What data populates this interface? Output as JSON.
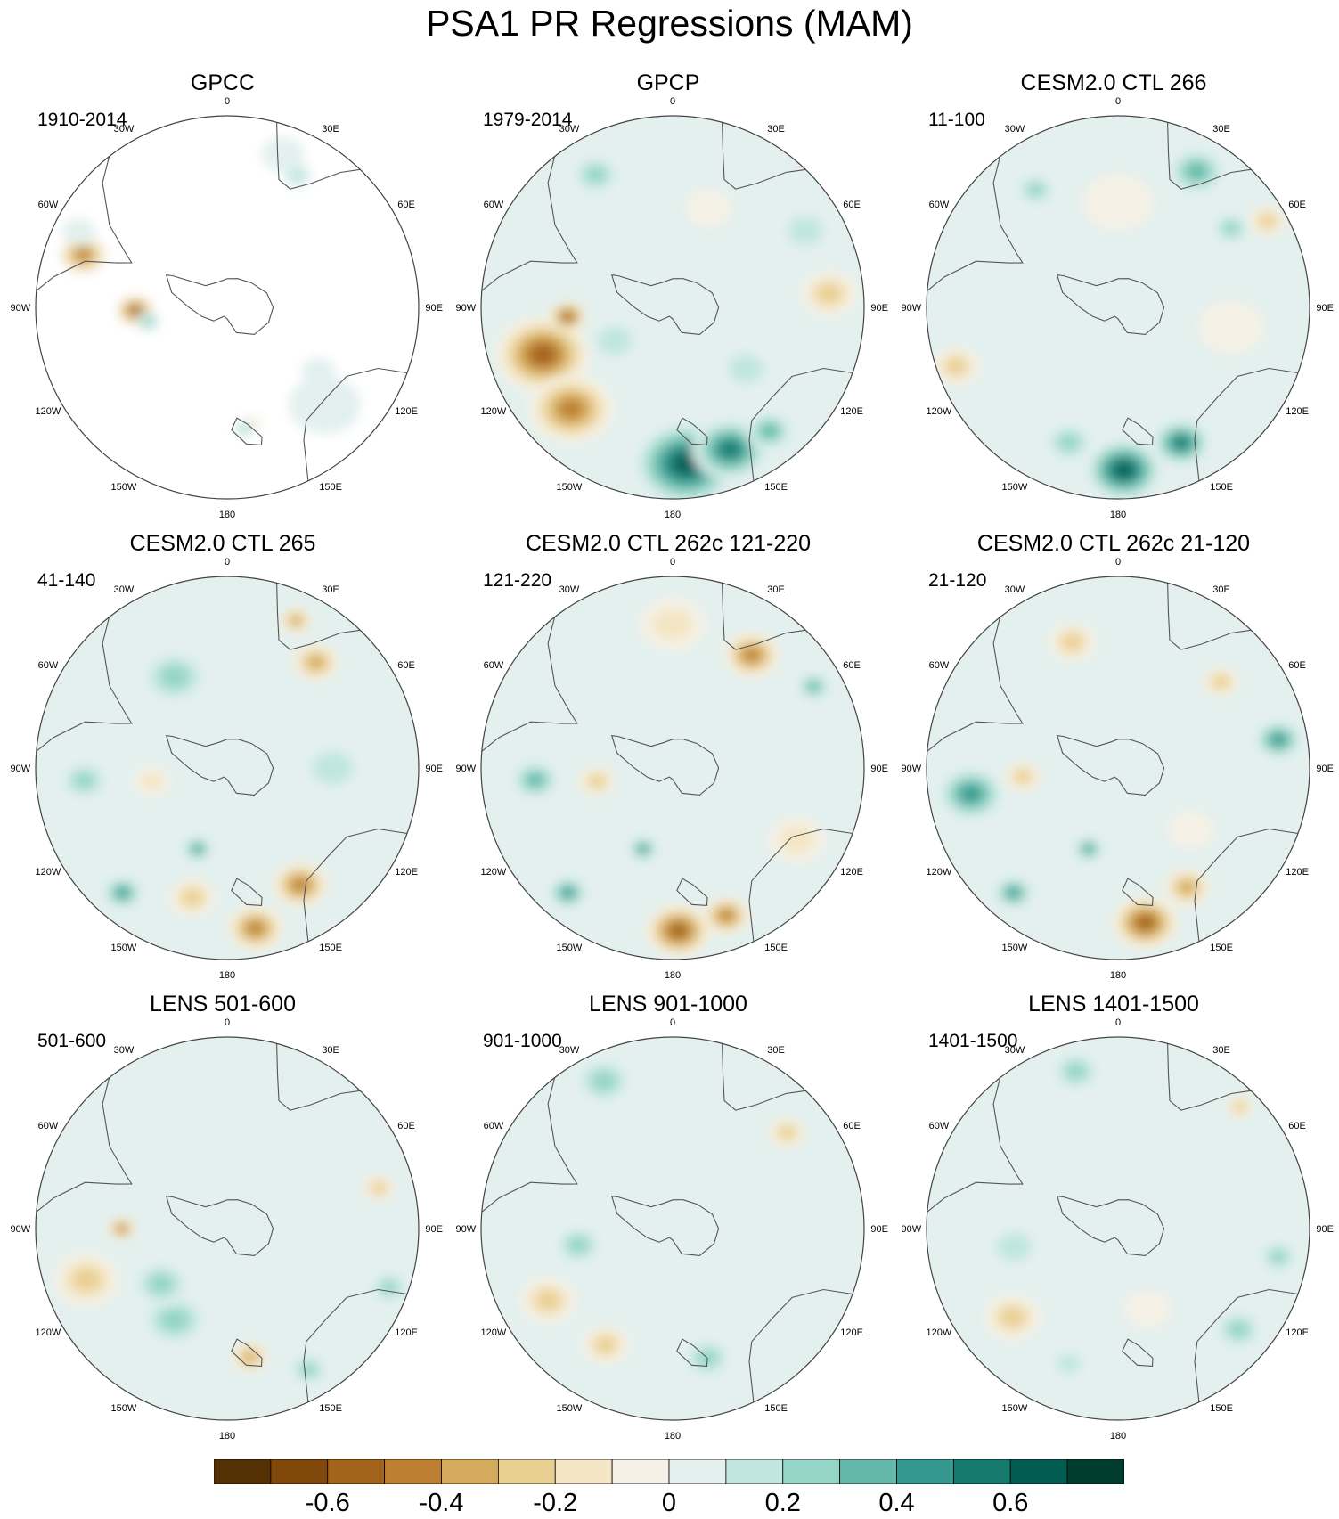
{
  "title": "PSA1 PR Regressions (MAM)",
  "lon_labels": [
    "0",
    "30E",
    "60E",
    "90E",
    "120E",
    "150E",
    "180",
    "150W",
    "120W",
    "90W",
    "60W",
    "30W"
  ],
  "panels": [
    {
      "title": "GPCC",
      "period": "1910-2014",
      "coverage": "land-only",
      "features": [
        {
          "lon": -70,
          "r": 0.8,
          "size": 0.1,
          "value": -0.5
        },
        {
          "lon": -63,
          "r": 0.87,
          "size": 0.07,
          "value": 0.15
        },
        {
          "lon": -92,
          "r": 0.48,
          "size": 0.08,
          "value": -0.6
        },
        {
          "lon": -100,
          "r": 0.42,
          "size": 0.05,
          "value": 0.3
        },
        {
          "lon": 20,
          "r": 0.85,
          "size": 0.09,
          "value": 0.15
        },
        {
          "lon": 28,
          "r": 0.78,
          "size": 0.06,
          "value": 0.2
        },
        {
          "lon": 135,
          "r": 0.72,
          "size": 0.15,
          "value": 0.12
        },
        {
          "lon": 125,
          "r": 0.58,
          "size": 0.07,
          "value": 0.1
        },
        {
          "lon": 168,
          "r": 0.62,
          "size": 0.04,
          "value": -0.15
        },
        {
          "lon": 172,
          "r": 0.64,
          "size": 0.04,
          "value": 0.3
        }
      ]
    },
    {
      "title": "GPCP",
      "period": "1979-2014",
      "coverage": "global",
      "features": [
        {
          "lon": -110,
          "r": 0.72,
          "size": 0.2,
          "value": -0.55
        },
        {
          "lon": -135,
          "r": 0.75,
          "size": 0.18,
          "value": -0.5
        },
        {
          "lon": -95,
          "r": 0.55,
          "size": 0.08,
          "value": -0.6
        },
        {
          "lon": 175,
          "r": 0.82,
          "size": 0.22,
          "value": 0.7
        },
        {
          "lon": 158,
          "r": 0.8,
          "size": 0.16,
          "value": 0.55
        },
        {
          "lon": 142,
          "r": 0.82,
          "size": 0.1,
          "value": 0.4
        },
        {
          "lon": -30,
          "r": 0.8,
          "size": 0.1,
          "value": 0.35
        },
        {
          "lon": 60,
          "r": 0.8,
          "size": 0.12,
          "value": 0.2
        },
        {
          "lon": 85,
          "r": 0.82,
          "size": 0.12,
          "value": -0.25
        },
        {
          "lon": -120,
          "r": 0.35,
          "size": 0.12,
          "value": 0.2
        },
        {
          "lon": 20,
          "r": 0.55,
          "size": 0.1,
          "value": -0.1
        },
        {
          "lon": 130,
          "r": 0.5,
          "size": 0.12,
          "value": 0.2
        }
      ]
    },
    {
      "title": "CESM2.0 CTL 266",
      "period": "11-100",
      "coverage": "global",
      "features": [
        {
          "lon": 178,
          "r": 0.85,
          "size": 0.16,
          "value": 0.7
        },
        {
          "lon": 155,
          "r": 0.78,
          "size": 0.12,
          "value": 0.55
        },
        {
          "lon": -160,
          "r": 0.75,
          "size": 0.1,
          "value": 0.35
        },
        {
          "lon": 30,
          "r": 0.82,
          "size": 0.12,
          "value": 0.4
        },
        {
          "lon": 55,
          "r": 0.72,
          "size": 0.08,
          "value": 0.3
        },
        {
          "lon": -35,
          "r": 0.75,
          "size": 0.08,
          "value": 0.35
        },
        {
          "lon": -110,
          "r": 0.9,
          "size": 0.1,
          "value": -0.3
        },
        {
          "lon": 0,
          "r": 0.55,
          "size": 0.15,
          "value": -0.15
        },
        {
          "lon": 100,
          "r": 0.6,
          "size": 0.14,
          "value": -0.15
        },
        {
          "lon": -90,
          "r": 0.4,
          "size": 0.15,
          "value": 0.15
        },
        {
          "lon": 60,
          "r": 0.9,
          "size": 0.08,
          "value": -0.3
        }
      ]
    },
    {
      "title": "CESM2.0 CTL 265",
      "period": "41-140",
      "coverage": "global",
      "features": [
        {
          "lon": 170,
          "r": 0.85,
          "size": 0.12,
          "value": -0.45
        },
        {
          "lon": 148,
          "r": 0.72,
          "size": 0.12,
          "value": -0.45
        },
        {
          "lon": -165,
          "r": 0.7,
          "size": 0.1,
          "value": -0.35
        },
        {
          "lon": 40,
          "r": 0.72,
          "size": 0.1,
          "value": -0.4
        },
        {
          "lon": 25,
          "r": 0.85,
          "size": 0.07,
          "value": -0.4
        },
        {
          "lon": -95,
          "r": 0.75,
          "size": 0.1,
          "value": 0.35
        },
        {
          "lon": -140,
          "r": 0.85,
          "size": 0.08,
          "value": 0.5
        },
        {
          "lon": -160,
          "r": 0.45,
          "size": 0.06,
          "value": 0.5
        },
        {
          "lon": -30,
          "r": 0.55,
          "size": 0.14,
          "value": 0.25
        },
        {
          "lon": 90,
          "r": 0.55,
          "size": 0.14,
          "value": 0.2
        },
        {
          "lon": -100,
          "r": 0.4,
          "size": 0.08,
          "value": -0.2
        }
      ]
    },
    {
      "title": "CESM2.0 CTL 262c 121-220",
      "period": "121-220",
      "coverage": "global",
      "features": [
        {
          "lon": 178,
          "r": 0.85,
          "size": 0.14,
          "value": -0.55
        },
        {
          "lon": 160,
          "r": 0.82,
          "size": 0.1,
          "value": -0.5
        },
        {
          "lon": 35,
          "r": 0.72,
          "size": 0.12,
          "value": -0.45
        },
        {
          "lon": 60,
          "r": 0.85,
          "size": 0.07,
          "value": 0.4
        },
        {
          "lon": -95,
          "r": 0.72,
          "size": 0.1,
          "value": 0.4
        },
        {
          "lon": -140,
          "r": 0.85,
          "size": 0.08,
          "value": 0.45
        },
        {
          "lon": -160,
          "r": 0.45,
          "size": 0.06,
          "value": 0.5
        },
        {
          "lon": -100,
          "r": 0.4,
          "size": 0.08,
          "value": -0.3
        },
        {
          "lon": 0,
          "r": 0.75,
          "size": 0.14,
          "value": -0.2
        },
        {
          "lon": 120,
          "r": 0.75,
          "size": 0.12,
          "value": -0.2
        }
      ]
    },
    {
      "title": "CESM2.0 CTL 262c 21-120",
      "period": "21-120",
      "coverage": "global",
      "features": [
        {
          "lon": 170,
          "r": 0.82,
          "size": 0.14,
          "value": -0.55
        },
        {
          "lon": 150,
          "r": 0.72,
          "size": 0.1,
          "value": -0.4
        },
        {
          "lon": 80,
          "r": 0.85,
          "size": 0.1,
          "value": 0.45
        },
        {
          "lon": 50,
          "r": 0.7,
          "size": 0.08,
          "value": -0.35
        },
        {
          "lon": -100,
          "r": 0.78,
          "size": 0.14,
          "value": 0.45
        },
        {
          "lon": -140,
          "r": 0.85,
          "size": 0.08,
          "value": 0.45
        },
        {
          "lon": -160,
          "r": 0.45,
          "size": 0.06,
          "value": 0.45
        },
        {
          "lon": -95,
          "r": 0.5,
          "size": 0.08,
          "value": -0.3
        },
        {
          "lon": -20,
          "r": 0.7,
          "size": 0.1,
          "value": -0.3
        },
        {
          "lon": 130,
          "r": 0.5,
          "size": 0.1,
          "value": -0.15
        }
      ]
    },
    {
      "title": "LENS 501-600",
      "period": "501-600",
      "coverage": "global",
      "features": [
        {
          "lon": -110,
          "r": 0.78,
          "size": 0.14,
          "value": -0.3
        },
        {
          "lon": -90,
          "r": 0.55,
          "size": 0.06,
          "value": -0.45
        },
        {
          "lon": -150,
          "r": 0.55,
          "size": 0.14,
          "value": 0.3
        },
        {
          "lon": -130,
          "r": 0.45,
          "size": 0.12,
          "value": 0.3
        },
        {
          "lon": 170,
          "r": 0.68,
          "size": 0.08,
          "value": -0.4
        },
        {
          "lon": 150,
          "r": 0.85,
          "size": 0.08,
          "value": 0.3
        },
        {
          "lon": 110,
          "r": 0.9,
          "size": 0.08,
          "value": 0.3
        },
        {
          "lon": -20,
          "r": 0.8,
          "size": 0.1,
          "value": 0.15
        },
        {
          "lon": 75,
          "r": 0.82,
          "size": 0.07,
          "value": -0.25
        }
      ]
    },
    {
      "title": "LENS 901-1000",
      "period": "901-1000",
      "coverage": "global",
      "features": [
        {
          "lon": -25,
          "r": 0.85,
          "size": 0.12,
          "value": 0.35
        },
        {
          "lon": 50,
          "r": 0.78,
          "size": 0.08,
          "value": -0.3
        },
        {
          "lon": -120,
          "r": 0.75,
          "size": 0.12,
          "value": -0.3
        },
        {
          "lon": -150,
          "r": 0.7,
          "size": 0.1,
          "value": -0.3
        },
        {
          "lon": -100,
          "r": 0.5,
          "size": 0.1,
          "value": 0.3
        },
        {
          "lon": 165,
          "r": 0.7,
          "size": 0.1,
          "value": 0.3
        },
        {
          "lon": 10,
          "r": 0.55,
          "size": 0.14,
          "value": 0.15
        },
        {
          "lon": 100,
          "r": 0.6,
          "size": 0.1,
          "value": 0.15
        }
      ]
    },
    {
      "title": "LENS 1401-1500",
      "period": "1401-1500",
      "coverage": "global",
      "features": [
        {
          "lon": -15,
          "r": 0.85,
          "size": 0.1,
          "value": 0.25
        },
        {
          "lon": 45,
          "r": 0.9,
          "size": 0.06,
          "value": -0.3
        },
        {
          "lon": -130,
          "r": 0.72,
          "size": 0.12,
          "value": -0.3
        },
        {
          "lon": 130,
          "r": 0.82,
          "size": 0.1,
          "value": 0.3
        },
        {
          "lon": 100,
          "r": 0.85,
          "size": 0.08,
          "value": 0.25
        },
        {
          "lon": -100,
          "r": 0.55,
          "size": 0.12,
          "value": 0.2
        },
        {
          "lon": -160,
          "r": 0.75,
          "size": 0.08,
          "value": 0.2
        },
        {
          "lon": 160,
          "r": 0.45,
          "size": 0.1,
          "value": -0.15
        }
      ]
    }
  ],
  "colorbar": {
    "levels": [
      -0.8,
      -0.7,
      -0.6,
      -0.5,
      -0.4,
      -0.3,
      -0.2,
      -0.1,
      0,
      0.1,
      0.2,
      0.3,
      0.4,
      0.5,
      0.6,
      0.7,
      0.8
    ],
    "colors": [
      "#543005",
      "#7f480a",
      "#a2641a",
      "#bd8032",
      "#d4aa5c",
      "#e9cf92",
      "#f4e6c4",
      "#f5f1e6",
      "#e3f0ee",
      "#c0e6df",
      "#94d5c8",
      "#63b8a9",
      "#35978f",
      "#17786d",
      "#035c52",
      "#003c30"
    ],
    "tick_labels": [
      {
        "value": -0.6,
        "label": "-0.6"
      },
      {
        "value": -0.4,
        "label": "-0.4"
      },
      {
        "value": -0.2,
        "label": "-0.2"
      },
      {
        "value": 0,
        "label": "0"
      },
      {
        "value": 0.2,
        "label": "0.2"
      },
      {
        "value": 0.4,
        "label": "0.4"
      },
      {
        "value": 0.6,
        "label": "0.6"
      }
    ]
  }
}
